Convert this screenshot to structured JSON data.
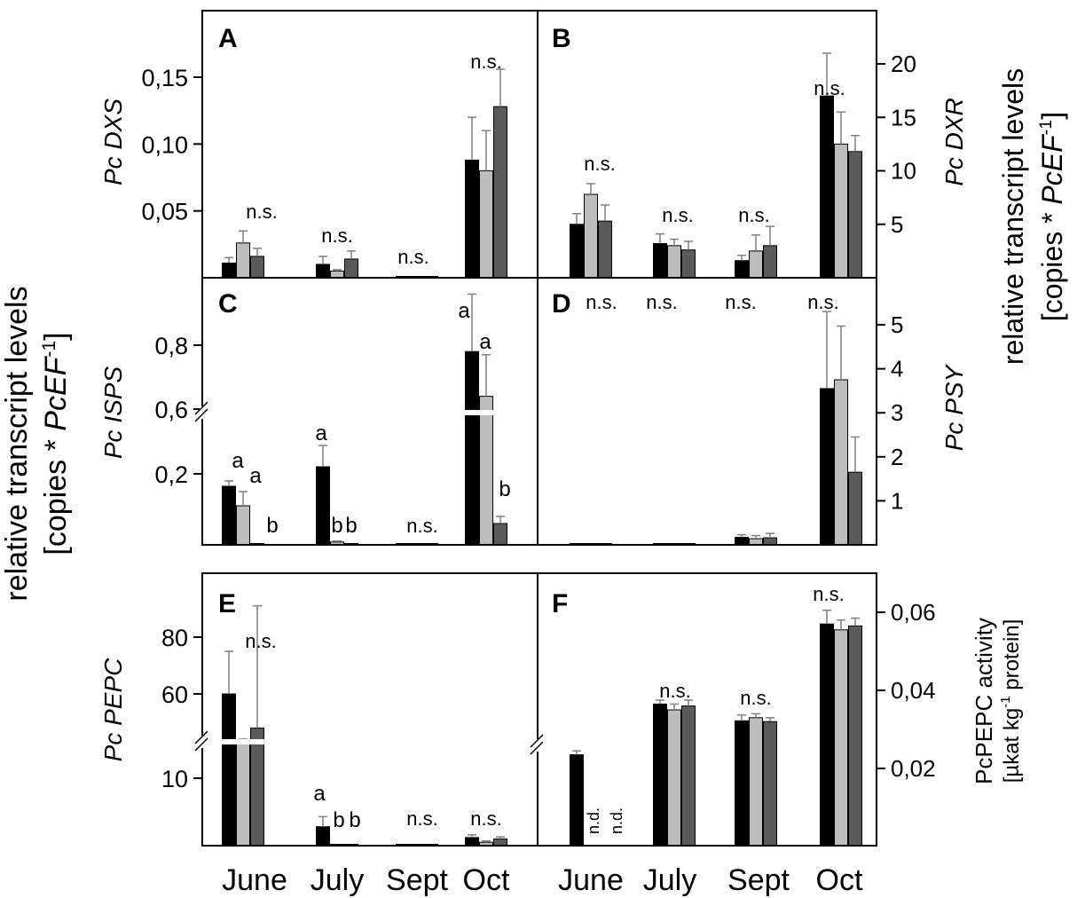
{
  "figure": {
    "left_ylabel": [
      "relative transcript levels",
      "[copies * ",
      "PcEF",
      "-1",
      "]"
    ],
    "right_ylabel": [
      "relative transcript levels",
      "[copies * ",
      "PcEF",
      "-1",
      "]"
    ],
    "pepc_activity_label": [
      "PcPEPC activity",
      "[µkat kg",
      "-1",
      " protein]"
    ],
    "x_categories": [
      "June",
      "July",
      "Sept",
      "Oct"
    ],
    "colors": {
      "black": "#000000",
      "light_gray": "#bdbdbd",
      "dark_gray": "#5a5a5a",
      "error_bar": "#7f7f7f"
    }
  },
  "chart_data": [
    {
      "type": "bar",
      "panel": "A",
      "ylabel": "Pc DXS",
      "y_axis_side": "left",
      "yticks": [
        "0,05",
        "0,10",
        "0,15"
      ],
      "ylim": [
        0,
        0.18
      ],
      "categories": [
        "June",
        "July",
        "Sept",
        "Oct"
      ],
      "series": [
        {
          "values": [
            0.011,
            0.01,
            0.0005,
            0.088
          ],
          "errors": [
            0.004,
            0.006,
            0.0005,
            0.032
          ]
        },
        {
          "values": [
            0.026,
            0.005,
            0.0005,
            0.08
          ],
          "errors": [
            0.009,
            0.001,
            0.0003,
            0.03
          ]
        },
        {
          "values": [
            0.016,
            0.014,
            0.0005,
            0.128
          ],
          "errors": [
            0.006,
            0.006,
            0.0003,
            0.028
          ]
        }
      ],
      "significance": [
        "n.s.",
        "n.s.",
        "n.s.",
        "n.s."
      ]
    },
    {
      "type": "bar",
      "panel": "B",
      "ylabel": "Pc DXR",
      "y_axis_side": "right",
      "yticks": [
        "5",
        "10",
        "15",
        "20"
      ],
      "ylim": [
        0,
        24
      ],
      "categories": [
        "June",
        "July",
        "Sept",
        "Oct"
      ],
      "series": [
        {
          "values": [
            5.0,
            3.2,
            1.6,
            17.0
          ],
          "errors": [
            1.0,
            0.9,
            0.5,
            4.0
          ]
        },
        {
          "values": [
            7.8,
            3.0,
            2.5,
            12.5
          ],
          "errors": [
            1.0,
            0.6,
            1.5,
            3.0
          ]
        },
        {
          "values": [
            5.3,
            2.6,
            3.0,
            11.8
          ],
          "errors": [
            1.5,
            0.8,
            1.8,
            1.5
          ]
        }
      ],
      "significance": [
        "n.s.",
        "n.s.",
        "n.s.",
        "n.s."
      ]
    },
    {
      "type": "bar",
      "panel": "C",
      "ylabel": "Pc ISPS",
      "y_axis_side": "left",
      "axis_break": "between 0,2 and 0,6",
      "yticks": [
        "0,2",
        "0,6",
        "0,8"
      ],
      "categories": [
        "June",
        "July",
        "Sept",
        "Oct"
      ],
      "series": [
        {
          "values": [
            0.165,
            0.22,
            0.001,
            0.78
          ],
          "errors": [
            0.015,
            0.06,
            0.001,
            0.18
          ]
        },
        {
          "values": [
            0.11,
            0.008,
            0.001,
            0.64
          ],
          "errors": [
            0.04,
            0.003,
            0.0005,
            0.13
          ]
        },
        {
          "values": [
            0.003,
            0.001,
            0.001,
            0.06
          ],
          "errors": [
            0.001,
            0.0005,
            0.0005,
            0.02
          ]
        }
      ],
      "significance": [
        [
          "a",
          "a",
          "b"
        ],
        [
          "a",
          "b",
          "b"
        ],
        "n.s.",
        [
          "a",
          "a",
          "b"
        ]
      ]
    },
    {
      "type": "bar",
      "panel": "D",
      "ylabel": "Pc PSY",
      "y_axis_side": "right",
      "yticks": [
        "1",
        "2",
        "3",
        "4",
        "5"
      ],
      "ylim": [
        0,
        5.7
      ],
      "categories": [
        "June",
        "July",
        "Sept",
        "Oct"
      ],
      "series": [
        {
          "values": [
            0.02,
            0.02,
            0.17,
            3.55
          ],
          "errors": [
            0.02,
            0.02,
            0.06,
            1.75
          ]
        },
        {
          "values": [
            0.03,
            0.0,
            0.14,
            3.75
          ],
          "errors": [
            0.02,
            0.0,
            0.07,
            1.22
          ]
        },
        {
          "values": [
            0.03,
            0.0,
            0.16,
            1.65
          ],
          "errors": [
            0.02,
            0.0,
            0.1,
            0.8
          ]
        }
      ],
      "significance": [
        "n.s.",
        "n.s.",
        "n.s.",
        "n.s."
      ]
    },
    {
      "type": "bar",
      "panel": "E",
      "ylabel": "Pc PEPC",
      "y_axis_side": "left",
      "axis_break": "between 10 and 60",
      "yticks": [
        "10",
        "60",
        "80"
      ],
      "categories": [
        "June",
        "July",
        "Sept",
        "Oct"
      ],
      "series": [
        {
          "values": [
            60,
            2.8,
            0,
            1.2
          ],
          "errors": [
            15,
            1.5,
            0,
            0.4
          ]
        },
        {
          "values": [
            15.5,
            0.1,
            0,
            0.5
          ],
          "errors": [
            0.3,
            0.05,
            0,
            0.2
          ]
        },
        {
          "values": [
            48,
            0.1,
            0,
            1.0
          ],
          "errors": [
            43,
            0.05,
            0,
            0.3
          ]
        }
      ],
      "significance": [
        "n.s.",
        [
          "a",
          "b",
          "b"
        ],
        "n.s.",
        "n.s."
      ]
    },
    {
      "type": "bar",
      "panel": "F",
      "ylabel": "PcPEPC activity [µkat kg-1 protein]",
      "y_axis_side": "right",
      "axis_break": "below 0,02",
      "yticks": [
        "0,02",
        "0,04",
        "0,06"
      ],
      "categories": [
        "June",
        "July",
        "Sept",
        "Oct"
      ],
      "series": [
        {
          "values": [
            0.0235,
            0.0365,
            0.0322,
            0.057
          ],
          "errors": [
            0.001,
            0.001,
            0.0015,
            0.0035
          ]
        },
        {
          "values": [
            null,
            0.035,
            0.033,
            0.0555
          ],
          "errors": [
            null,
            0.0015,
            0.001,
            0.0025
          ]
        },
        {
          "values": [
            null,
            0.036,
            0.032,
            0.0565
          ],
          "errors": [
            null,
            0.0015,
            0.001,
            0.002
          ]
        }
      ],
      "missing_labels": [
        "n.d.",
        "n.d."
      ],
      "significance": [
        "",
        "n.s.",
        "n.s.",
        "n.s."
      ]
    }
  ]
}
